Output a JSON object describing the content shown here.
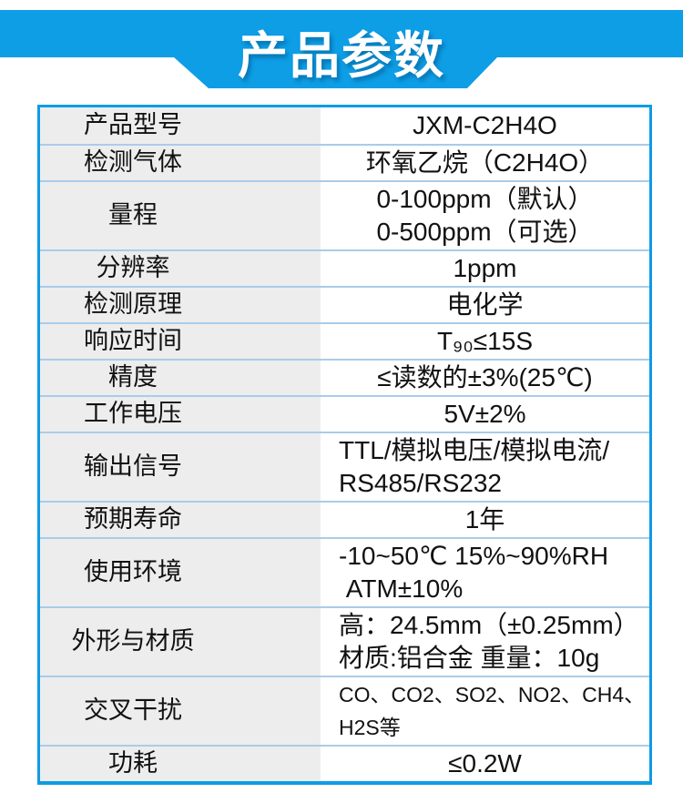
{
  "banner": {
    "title": "产品参数",
    "background_color": "#0d9ee6",
    "text_color": "#ffffff"
  },
  "table": {
    "border_color": "#0d9ce4",
    "separator_color": "#a9cce9",
    "label_background": "#ededee",
    "rows": [
      {
        "label": "产品型号",
        "values": [
          "JXM-C2H4O"
        ]
      },
      {
        "label": "检测气体",
        "values": [
          "环氧乙烷（C2H4O）"
        ]
      },
      {
        "label": "量程",
        "values": [
          "0-100ppm（默认）",
          "0-500ppm（可选）"
        ]
      },
      {
        "label": "分辨率",
        "values": [
          "1ppm"
        ]
      },
      {
        "label": "检测原理",
        "values": [
          "电化学"
        ]
      },
      {
        "label": "响应时间",
        "values": [
          "T₉₀≤15S"
        ]
      },
      {
        "label": "精度",
        "values": [
          "≤读数的±3%(25℃)"
        ]
      },
      {
        "label": "工作电压",
        "values": [
          "5V±2%"
        ]
      },
      {
        "label": "输出信号",
        "values": [
          "TTL/模拟电压/模拟电流/",
          "RS485/RS232"
        ]
      },
      {
        "label": "预期寿命",
        "values": [
          "1年"
        ]
      },
      {
        "label": "使用环境",
        "values": [
          "-10~50℃ 15%~90%RH",
          " ATM±10%"
        ]
      },
      {
        "label": "外形与材质",
        "values": [
          "高：24.5mm（±0.25mm）",
          "材质:铝合金 重量：10g"
        ]
      },
      {
        "label": "交叉干扰",
        "values": [
          "CO、CO2、SO2、NO2、CH4、",
          "H2S等"
        ]
      },
      {
        "label": "功耗",
        "values": [
          "≤0.2W"
        ]
      }
    ]
  }
}
